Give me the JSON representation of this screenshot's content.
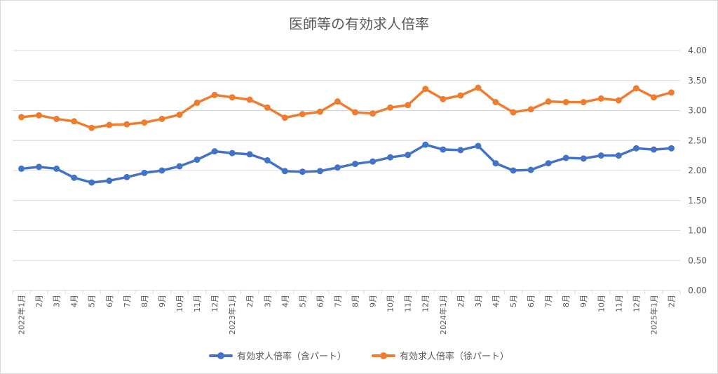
{
  "chart_data": {
    "type": "line",
    "title": "医師等の有効求人倍率",
    "xlabel": "",
    "ylabel": "",
    "ylim": [
      0,
      4
    ],
    "yticks": [
      "0.00",
      "0.50",
      "1.00",
      "1.50",
      "2.00",
      "2.50",
      "3.00",
      "3.50",
      "4.00"
    ],
    "grid": true,
    "legend_position": "bottom",
    "categories": [
      "2022年1月",
      "2月",
      "3月",
      "4月",
      "5月",
      "6月",
      "7月",
      "8月",
      "9月",
      "10月",
      "11月",
      "12月",
      "2023年1月",
      "2月",
      "3月",
      "4月",
      "5月",
      "6月",
      "7月",
      "8月",
      "9月",
      "10月",
      "11月",
      "12月",
      "2024年1月",
      "2月",
      "3月",
      "4月",
      "5月",
      "6月",
      "7月",
      "8月",
      "9月",
      "10月",
      "11月",
      "12月",
      "2025年1月",
      "2月"
    ],
    "series": [
      {
        "name": "有効求人倍率（含パート）",
        "color": "#4472c4",
        "values": [
          2.03,
          2.06,
          2.03,
          1.88,
          1.8,
          1.83,
          1.89,
          1.96,
          2.0,
          2.07,
          2.18,
          2.32,
          2.29,
          2.27,
          2.17,
          1.99,
          1.98,
          1.99,
          2.05,
          2.11,
          2.15,
          2.22,
          2.26,
          2.43,
          2.35,
          2.34,
          2.41,
          2.12,
          2.0,
          2.01,
          2.12,
          2.21,
          2.2,
          2.25,
          2.25,
          2.37,
          2.35,
          2.37
        ]
      },
      {
        "name": "有効求人倍率（徐パート）",
        "color": "#ed7d31",
        "values": [
          2.89,
          2.92,
          2.86,
          2.82,
          2.71,
          2.76,
          2.77,
          2.8,
          2.86,
          2.93,
          3.13,
          3.26,
          3.22,
          3.18,
          3.05,
          2.88,
          2.94,
          2.98,
          3.15,
          2.97,
          2.95,
          3.05,
          3.09,
          3.36,
          3.19,
          3.25,
          3.38,
          3.14,
          2.97,
          3.02,
          3.15,
          3.14,
          3.14,
          3.2,
          3.17,
          3.37,
          3.22,
          3.3
        ]
      }
    ]
  }
}
